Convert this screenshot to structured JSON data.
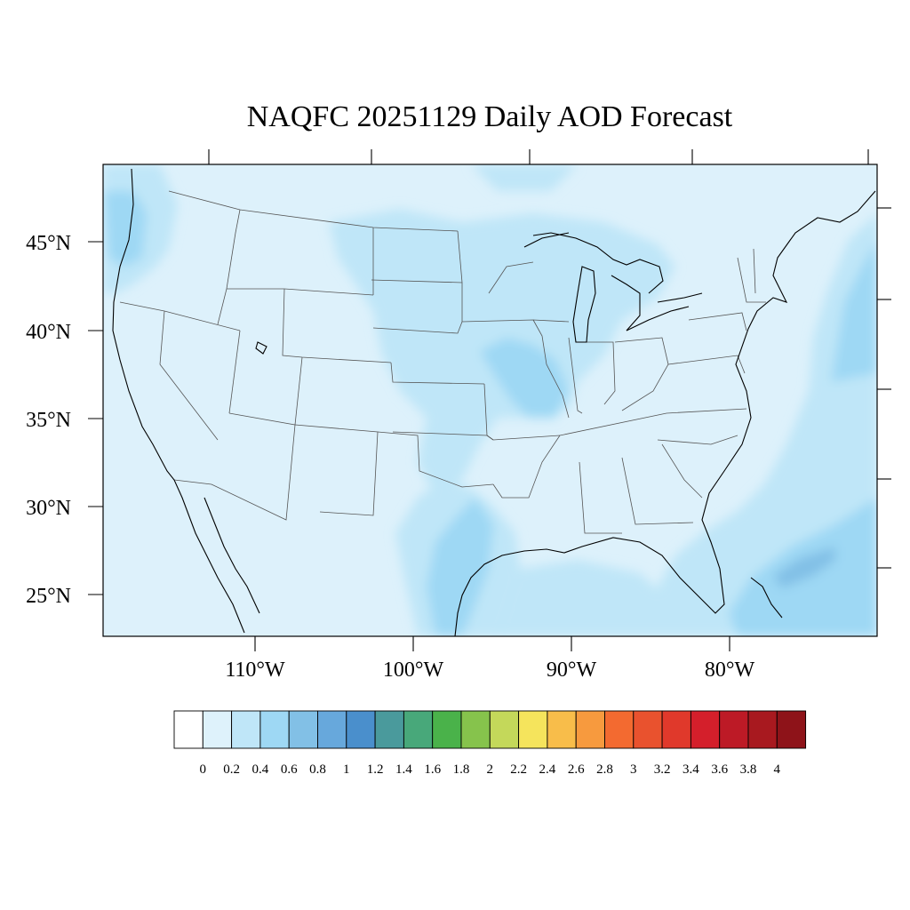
{
  "map": {
    "title": "NAQFC 20251129 Daily AOD Forecast",
    "lat_labels": [
      "45°N",
      "40°N",
      "35°N",
      "30°N",
      "25°N"
    ],
    "lon_labels": [
      "110°W",
      "100°W",
      "90°W",
      "80°W"
    ]
  },
  "colorbar": {
    "labels": [
      "0",
      "0.2",
      "0.4",
      "0.6",
      "0.8",
      "1",
      "1.2",
      "1.4",
      "1.6",
      "1.8",
      "2",
      "2.2",
      "2.4",
      "2.6",
      "2.8",
      "3",
      "3.2",
      "3.4",
      "3.6",
      "3.8",
      "4"
    ],
    "colors": [
      "#ffffff",
      "#def2fb",
      "#bfe6f8",
      "#9ed8f4",
      "#82c0e6",
      "#67a8dc",
      "#4a8fcc",
      "#4a9a9c",
      "#48a87a",
      "#4ab24a",
      "#86c34c",
      "#c4d85a",
      "#f5e45c",
      "#f8bd4a",
      "#f79a3e",
      "#f36a30",
      "#e9522e",
      "#e0392b",
      "#d41f2b",
      "#bd1a26",
      "#a8191f",
      "#8e1319"
    ]
  }
}
